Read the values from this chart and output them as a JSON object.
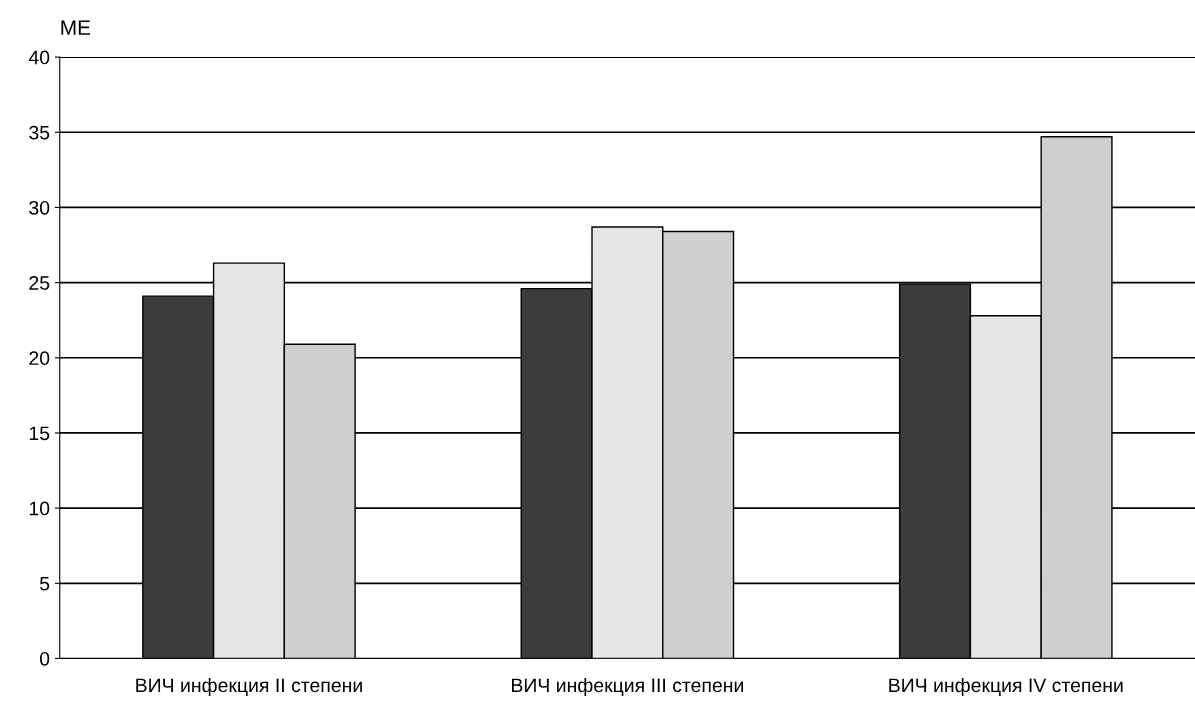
{
  "chart_data": {
    "type": "bar",
    "ylabel": "ME",
    "categories": [
      "ВИЧ инфекция II степени",
      "ВИЧ инфекция III степени",
      "ВИЧ инфекция IV степени"
    ],
    "series": [
      {
        "color": "#3c3c3c",
        "values": [
          24.1,
          24.6,
          24.9
        ]
      },
      {
        "color": "#e6e6e6",
        "values": [
          26.3,
          28.7,
          22.8
        ]
      },
      {
        "color": "#cfcfcf",
        "values": [
          20.9,
          28.4,
          34.7
        ]
      }
    ],
    "ylim": [
      0,
      40
    ],
    "yticks": [
      0,
      5,
      10,
      15,
      20,
      25,
      30,
      35,
      40
    ],
    "grid": "y",
    "legend": false
  }
}
